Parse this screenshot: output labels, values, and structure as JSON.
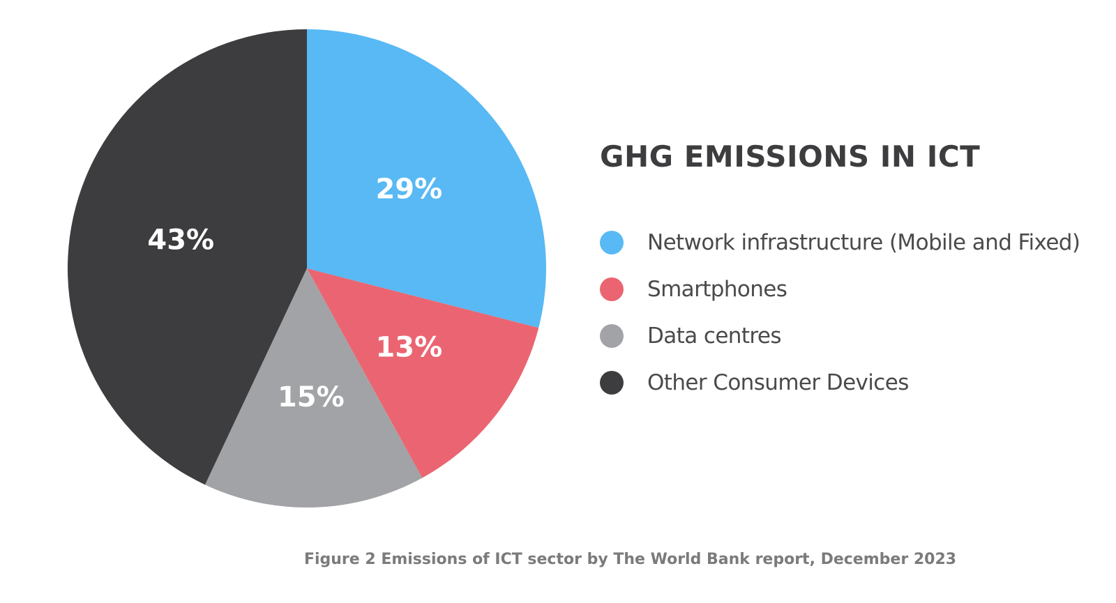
{
  "chart_data": {
    "type": "pie",
    "title": "GHG EMISSIONS IN ICT",
    "caption": "Figure 2 Emissions of ICT sector by The World Bank report, December 2023",
    "categories": [
      "Network infrastructure (Mobile and Fixed)",
      "Smartphones",
      "Data centres",
      "Other Consumer Devices"
    ],
    "values": [
      29,
      13,
      15,
      43
    ],
    "value_labels": [
      "29%",
      "13%",
      "15%",
      "43%"
    ],
    "colors": [
      "#58b9f4",
      "#ea6571",
      "#a2a3a7",
      "#3d3d3f"
    ],
    "legend": "right"
  }
}
